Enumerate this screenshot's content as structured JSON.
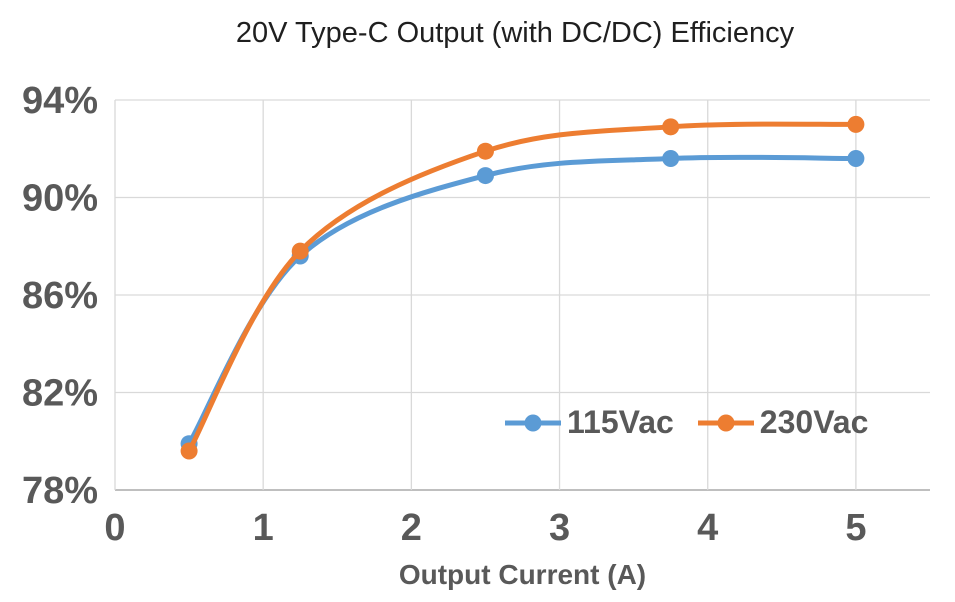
{
  "chart_data": {
    "type": "line",
    "title": "20V Type-C Output (with DC/DC) Efficiency",
    "xlabel": "Output Current (A)",
    "ylabel": "",
    "x": [
      0.5,
      1.25,
      2.5,
      3.75,
      5
    ],
    "series": [
      {
        "name": "115Vac",
        "color": "#5B9BD5",
        "values": [
          79.9,
          87.6,
          90.9,
          91.6,
          91.6
        ]
      },
      {
        "name": "230Vac",
        "color": "#ED7D31",
        "values": [
          79.6,
          87.8,
          91.9,
          92.9,
          93.0
        ]
      }
    ],
    "xlim": [
      0,
      5.5
    ],
    "ylim": [
      78,
      94
    ],
    "x_ticks": [
      0,
      1,
      2,
      3,
      4,
      5
    ],
    "x_tick_labels": [
      "0",
      "1",
      "2",
      "3",
      "4",
      "5"
    ],
    "y_ticks": [
      78,
      82,
      86,
      90,
      94
    ],
    "y_tick_labels": [
      "78%",
      "82%",
      "86%",
      "90%",
      "94%"
    ],
    "grid": true,
    "smooth": true,
    "line_width": 5,
    "marker": "circle",
    "marker_radius": 8.5,
    "legend": {
      "position": "inside-bottom-right",
      "items": [
        "115Vac",
        "230Vac"
      ]
    },
    "colors": {
      "grid": "#D9D9D9",
      "axis_line": "#BFBFBF",
      "tick_text": "#595959",
      "title_text": "#1F1F1F",
      "background": "#FFFFFF"
    }
  }
}
